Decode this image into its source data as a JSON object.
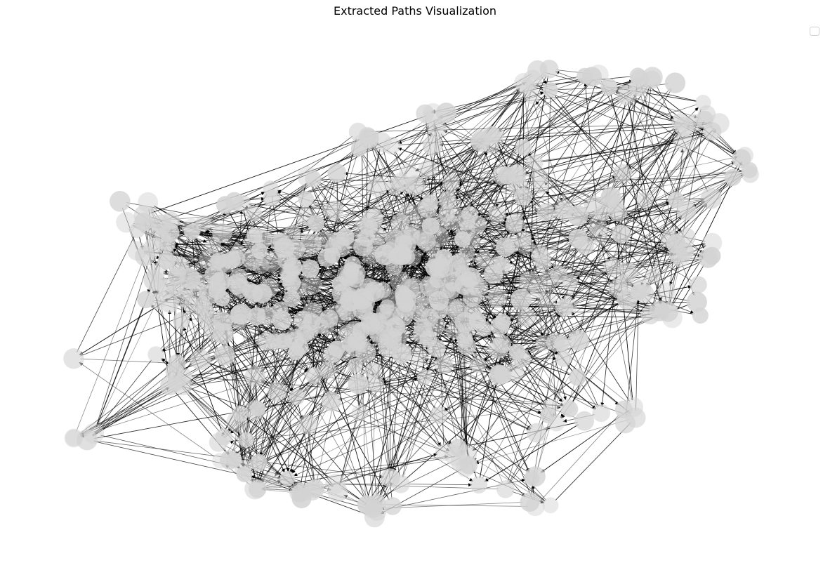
{
  "figure": {
    "title": "Extracted Paths Visualization",
    "node_color": "#d3d3d3",
    "edge_color": "#000000",
    "background": "#ffffff",
    "legend": {
      "placement": "upper-right",
      "entries": []
    }
  },
  "chart_data": {
    "type": "network",
    "title": "Extracted Paths Visualization",
    "directed": true,
    "axes_visible": false,
    "legend": "top-right",
    "legend_entries": []
  }
}
